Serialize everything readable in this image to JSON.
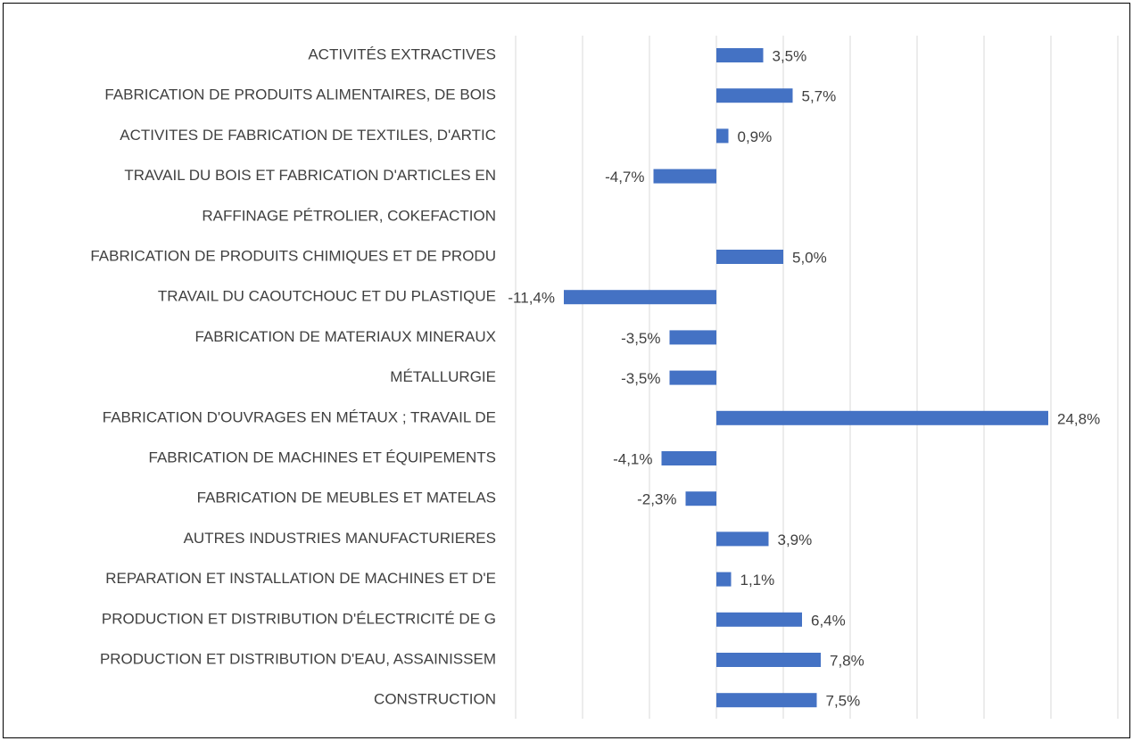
{
  "chart_data": {
    "type": "hbar",
    "categories": [
      "ACTIVITÉS EXTRACTIVES",
      "FABRICATION DE PRODUITS ALIMENTAIRES, DE BOIS",
      "ACTIVITES DE FABRICATION DE TEXTILES, D'ARTIC",
      "TRAVAIL DU BOIS ET FABRICATION D'ARTICLES EN",
      "RAFFINAGE PÉTROLIER, COKEFACTION",
      "FABRICATION DE PRODUITS CHIMIQUES ET DE PRODU",
      "TRAVAIL DU CAOUTCHOUC ET DU PLASTIQUE",
      "FABRICATION DE MATERIAUX MINERAUX",
      "MÉTALLURGIE",
      "FABRICATION D'OUVRAGES EN MÉTAUX ; TRAVAIL DE",
      "FABRICATION DE MACHINES ET ÉQUIPEMENTS",
      "FABRICATION DE MEUBLES ET MATELAS",
      "AUTRES INDUSTRIES MANUFACTURIERES",
      "REPARATION ET INSTALLATION DE MACHINES ET D'E",
      "PRODUCTION ET DISTRIBUTION D'ÉLECTRICITÉ DE G",
      "PRODUCTION ET DISTRIBUTION D'EAU, ASSAINISSEM",
      "CONSTRUCTION"
    ],
    "values": [
      3.5,
      5.7,
      0.9,
      -4.7,
      null,
      5.0,
      -11.4,
      -3.5,
      -3.5,
      24.8,
      -4.1,
      -2.3,
      3.9,
      1.1,
      6.4,
      7.8,
      7.5
    ],
    "value_labels": [
      "3,5%",
      "5,7%",
      "0,9%",
      "-4,7%",
      null,
      "5,0%",
      "-11,4%",
      "-3,5%",
      "-3,5%",
      "24,8%",
      "-4,1%",
      "-2,3%",
      "3,9%",
      "1,1%",
      "6,4%",
      "7,8%",
      "7,5%"
    ],
    "color": "#4472c4",
    "xlim": [
      -15,
      30
    ],
    "xticks": [
      -15,
      -10,
      -5,
      0,
      5,
      10,
      15,
      20,
      25,
      30
    ],
    "grid": true
  }
}
